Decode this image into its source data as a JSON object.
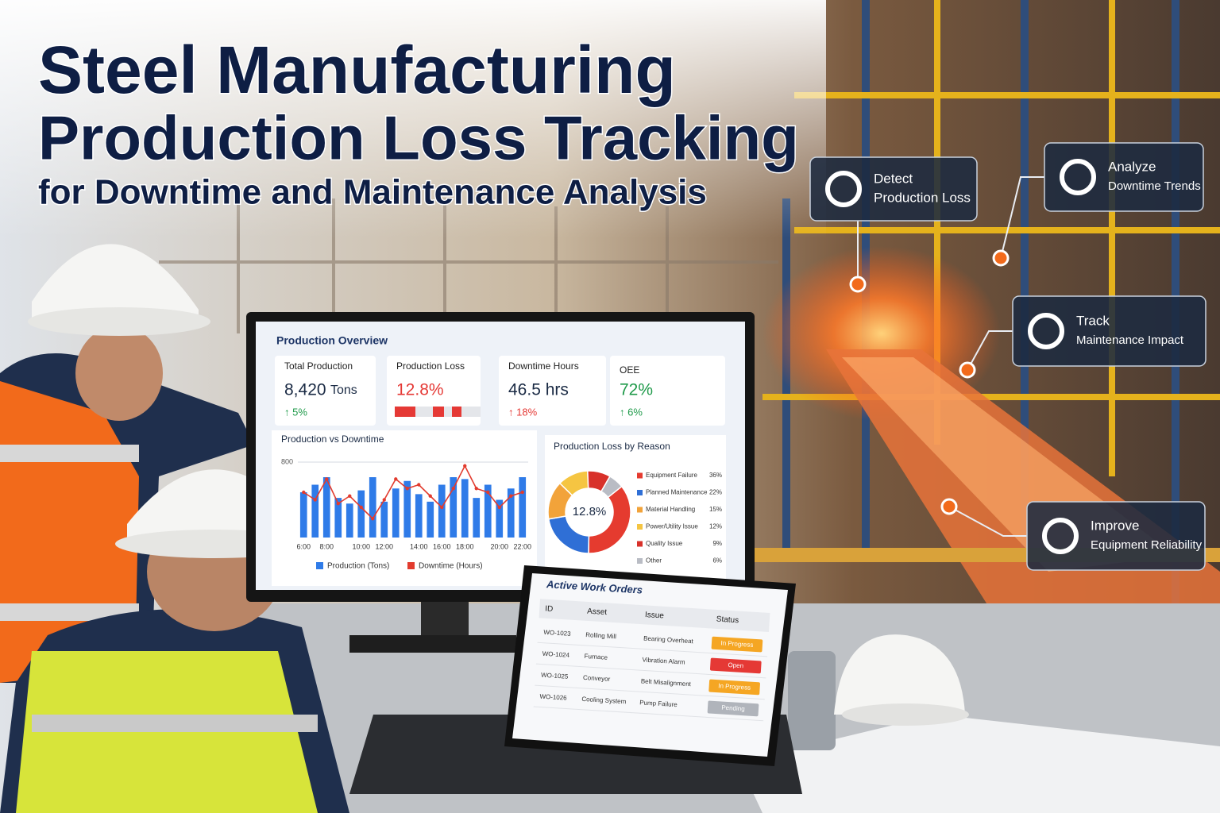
{
  "header": {
    "lines": [
      "Steel Manufacturing",
      "Production Loss Tracking",
      "for Downtime and Maintenance Analysis"
    ]
  },
  "callouts": [
    [
      "Detect",
      "Production Loss"
    ],
    [
      "Analyze",
      "Downtime Trends"
    ],
    [
      "Track",
      "Maintenance Impact"
    ],
    [
      "Improve",
      "Equipment Reliability"
    ]
  ],
  "dashboard": {
    "title": "Production Overview",
    "kpis": [
      {
        "label": "Total Production",
        "value": "8,420",
        "unit": "Tons",
        "change": "↑ 5%"
      },
      {
        "label": "Production Loss",
        "value": "12.8%"
      },
      {
        "label": "Downtime Hours",
        "value": "46.5 hrs",
        "change": "↑ 18%"
      },
      {
        "label": "OEE",
        "value": "72%",
        "change": "↑ 6%"
      }
    ]
  },
  "chart_data": [
    {
      "type": "bar",
      "title": "Production vs Downtime",
      "categories": [
        "6:00",
        null,
        "8:00",
        null,
        null,
        "10:00",
        null,
        "12:00",
        null,
        null,
        "14:00",
        null,
        "16:00",
        null,
        "18:00",
        null,
        null,
        "20:00",
        null,
        "22:00"
      ],
      "series": [
        {
          "name": "Production (Tons)",
          "color": "#2f7be8",
          "values": [
            480,
            560,
            640,
            420,
            360,
            500,
            640,
            380,
            520,
            600,
            460,
            380,
            560,
            640,
            620,
            420,
            560,
            400,
            520,
            640
          ]
        },
        {
          "name": "Downtime (Hours)",
          "type": "line",
          "color": "#e23b2e",
          "values": [
            480,
            400,
            620,
            360,
            440,
            320,
            200,
            400,
            620,
            520,
            560,
            440,
            320,
            520,
            760,
            520,
            480,
            320,
            440,
            480
          ]
        }
      ],
      "ylim": [
        0,
        800
      ],
      "yticks": [
        800
      ],
      "grid": true
    },
    {
      "type": "pie",
      "title": "Production Loss by Reason",
      "center_label": "12.8%",
      "categories": [
        "Equipment Failure",
        "Planned Maintenance",
        "Material Handling",
        "Power/Utility Issue",
        "Quality Issue",
        "Other"
      ],
      "values": [
        36,
        22,
        15,
        12,
        9,
        6
      ],
      "value_labels": [
        "36%",
        "22%",
        "15%",
        "12%",
        "9%",
        "6%"
      ],
      "colors": [
        "#e53b2f",
        "#2f6fd6",
        "#f2a33a",
        "#f5c542",
        "#d8312a",
        "#b9bcc4"
      ]
    }
  ],
  "work_orders": {
    "title": "Active Work Orders",
    "columns": [
      "ID",
      "Asset",
      "Issue",
      "Status"
    ],
    "rows": [
      [
        "WO-1023",
        "Rolling Mill",
        "Bearing Overheat",
        "In Progress"
      ],
      [
        "WO-1024",
        "Furnace",
        "Vibration Alarm",
        "Open"
      ],
      [
        "WO-1025",
        "Conveyor",
        "Belt Misalignment",
        "In Progress"
      ],
      [
        "WO-1026",
        "Cooling System",
        "Pump Failure",
        "Pending"
      ]
    ],
    "status_colors": [
      "#f5a623",
      "#e53935",
      "#f5a623",
      "#b0b4bb"
    ]
  }
}
